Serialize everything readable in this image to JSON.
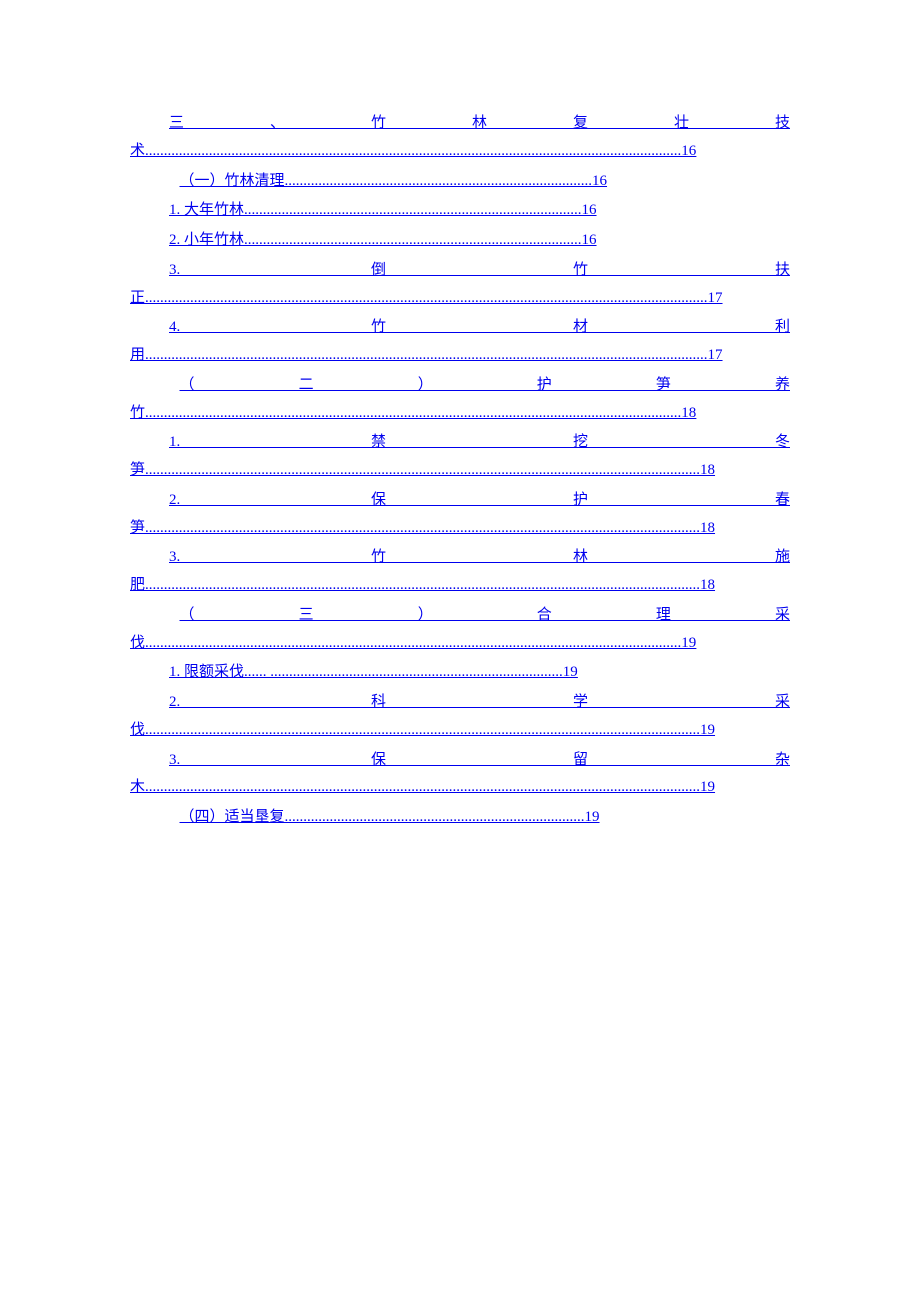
{
  "toc": {
    "entries": [
      {
        "indent": "indent-1",
        "text": "三、竹林复壮技术...............................................................................................................................................16"
      },
      {
        "indent": "indent-2",
        "text": "（一）竹林清理..................................................................................16"
      },
      {
        "indent": "indent-3",
        "text": "1. 大年竹林..........................................................................................16"
      },
      {
        "indent": "indent-3",
        "text": "2. 小年竹林..........................................................................................16"
      },
      {
        "indent": "indent-3",
        "text": "3. 倒竹扶正......................................................................................................................................................17"
      },
      {
        "indent": "indent-3",
        "text": " 4. 竹材利用......................................................................................................................................................17"
      },
      {
        "indent": "indent-2",
        "text": " （二）护笋养竹...............................................................................................................................................18"
      },
      {
        "indent": "indent-3",
        "text": "1. 禁挖冬笋....................................................................................................................................................18"
      },
      {
        "indent": "indent-3",
        "text": "2. 保护春笋....................................................................................................................................................18"
      },
      {
        "indent": "indent-3",
        "text": "3. 竹林施肥....................................................................................................................................................18"
      },
      {
        "indent": "indent-2",
        "text": " （三）合理采伐...............................................................................................................................................19"
      },
      {
        "indent": "indent-3",
        "text": "1. 限额采伐...... ..............................................................................19"
      },
      {
        "indent": "indent-3",
        "text": "2. 科学采伐....................................................................................................................................................19"
      },
      {
        "indent": "indent-3",
        "text": "3. 保留杂木....................................................................................................................................................19"
      },
      {
        "indent": "indent-2",
        "text": "（四）适当垦复................................................................................19"
      }
    ]
  },
  "colors": {
    "link": "#0000ee",
    "background": "#ffffff"
  },
  "typography": {
    "font_family": "SimSun",
    "font_size_pt": 11,
    "line_height": 1.85
  }
}
